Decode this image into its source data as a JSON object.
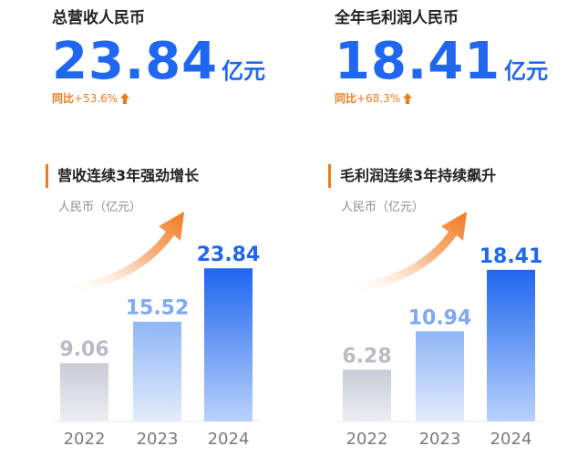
{
  "kpis": [
    {
      "label": "总营收人民币",
      "value": "23.84",
      "unit": "亿元",
      "yoy_label": "同比",
      "yoy_value": "+53.6%"
    },
    {
      "label": "全年毛利润人民币",
      "value": "18.41",
      "unit": "亿元",
      "yoy_label": "同比",
      "yoy_value": "+68.3%"
    }
  ],
  "colors": {
    "accent": "#1f66f0",
    "orange": "#f07a20",
    "grey_bar": "#c9ccd6"
  },
  "chart_data": [
    {
      "type": "bar",
      "title": "营收连续3年强劲增长",
      "ylabel": "人民币（亿元）",
      "categories": [
        "2022",
        "2023",
        "2024"
      ],
      "values": [
        9.06,
        15.52,
        23.84
      ],
      "value_labels": [
        "9.06",
        "15.52",
        "23.84"
      ],
      "ylim": [
        0,
        25
      ],
      "grid": false
    },
    {
      "type": "bar",
      "title": "毛利润连续3年持续飙升",
      "ylabel": "人民币（亿元）",
      "categories": [
        "2022",
        "2023",
        "2024"
      ],
      "values": [
        6.28,
        10.94,
        18.41
      ],
      "value_labels": [
        "6.28",
        "10.94",
        "18.41"
      ],
      "ylim": [
        0,
        19.5
      ],
      "grid": false
    }
  ]
}
